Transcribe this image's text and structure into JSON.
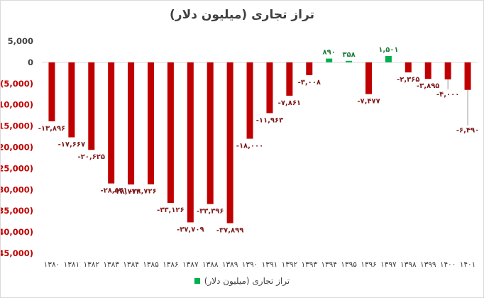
{
  "chart_data": {
    "type": "bar",
    "title": "تراز تجاری (میلیون دلار)",
    "categories": [
      "۱۳۸۰",
      "۱۳۸۱",
      "۱۳۸۲",
      "۱۳۸۳",
      "۱۳۸۴",
      "۱۳۸۵",
      "۱۳۸۶",
      "۱۳۸۷",
      "۱۳۸۸",
      "۱۳۸۹",
      "۱۳۹۰",
      "۱۳۹۱",
      "۱۳۹۲",
      "۱۳۹۳",
      "۱۳۹۴",
      "۱۳۹۵",
      "۱۳۹۶",
      "۱۳۹۷",
      "۱۳۹۸",
      "۱۳۹۹",
      "۱۴۰۰",
      "۱۴۰۱"
    ],
    "series": [
      {
        "name": "تراز تجاری (میلیون دلار)",
        "values": [
          -13896,
          -17667,
          -20625,
          -28541,
          -28773,
          -28726,
          -33126,
          -37709,
          -33396,
          -37899,
          -18000,
          -11963,
          -7861,
          -3008,
          890,
          358,
          -7477,
          1501,
          -2365,
          -3895,
          -4000,
          -6490
        ],
        "data_labels": [
          "-۱۳,۸۹۶",
          "-۱۷,۶۶۷",
          "-۲۰,۶۲۵",
          "-۲۸,۵۴۱",
          "-۲۸,۷۷۳",
          "-۲۸,۷۲۶",
          "-۳۳,۱۲۶",
          "-۳۷,۷۰۹",
          "-۳۳,۳۹۶",
          "-۳۷,۸۹۹",
          "-۱۸,۰۰۰",
          "-۱۱,۹۶۳",
          "-۷,۸۶۱",
          "-۳,۰۰۸",
          "۸۹۰",
          "۳۵۸",
          "-۷,۴۷۷",
          "۱,۵۰۱",
          "-۲,۳۶۵",
          "-۳,۸۹۵",
          "-۴,۰۰۰",
          "-۶,۴۹۰"
        ]
      }
    ],
    "ylim": [
      -45000,
      5000
    ],
    "yticks": [
      5000,
      0,
      -5000,
      -10000,
      -15000,
      -20000,
      -25000,
      -30000,
      -35000,
      -40000,
      -45000
    ],
    "ytick_labels": [
      "5,000",
      "0",
      "(5,000)",
      "(10,000)",
      "(15,000)",
      "(20,000)",
      "(25,000)",
      "(30,000)",
      "(35,000)",
      "(40,000)",
      "(45,000)"
    ],
    "grid": false,
    "legend_position": "bottom",
    "colors": {
      "negative": "#c00000",
      "positive": "#00b050",
      "label_negative": "#7f1a1a",
      "label_positive": "#1e7a3c",
      "axis_text": "#404040",
      "ytick_negative": "#c00000",
      "axis_line": "#d9d9d9"
    }
  },
  "legend": {
    "label": "تراز تجاری (میلیون دلار)",
    "swatch_color": "#00b050"
  }
}
